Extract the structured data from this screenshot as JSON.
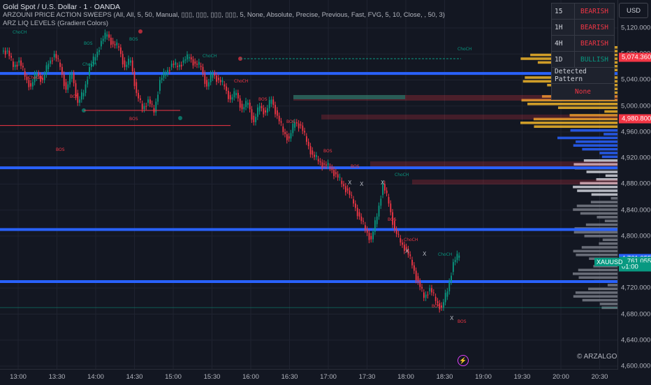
{
  "legend": {
    "title": "Gold Spot / U.S. Dollar · 1 · OANDA",
    "indicator1": "ARZOUNI PRICE ACTION SWEEPS (All, All, 5, 50, Manual, ▯▯▯, ▯▯▯, ▯▯▯, ▯▯▯, 5, None, Absolute, Precise, Previous, Fast, FVG, 5, 10, Close, , 50, 3)",
    "indicator2": "ARZ LIQ LEVELS (Gradient Colors)"
  },
  "currency_button": "USD",
  "mtf_table": {
    "rows": [
      {
        "tf": "15",
        "status": "BEARISH",
        "color": "#f23645"
      },
      {
        "tf": "1H",
        "status": "BEARISH",
        "color": "#f23645"
      },
      {
        "tf": "4H",
        "status": "BEARISH",
        "color": "#f23645"
      },
      {
        "tf": "1D",
        "status": "BULLISH",
        "color": "#089981"
      }
    ],
    "header": "Detected Pattern",
    "pattern": "None"
  },
  "price_axis": {
    "ticks": [
      "5,120.000",
      "5,080.000",
      "5,040.000",
      "5,000.000",
      "4,960.000",
      "4,920.000",
      "4,880.000",
      "4,840.000",
      "4,800.000",
      "4,720.000",
      "4,680.000",
      "4,640.000",
      "4,600.000"
    ],
    "tick_values": [
      5120,
      5080,
      5040,
      5000,
      4960,
      4920,
      4880,
      4840,
      4800,
      4720,
      4680,
      4640,
      4600
    ],
    "tags": [
      {
        "label": "5,074.360",
        "value": 5074.36,
        "bg": "#f23645"
      },
      {
        "label": "4,980.800",
        "value": 4980.8,
        "bg": "#f23645"
      },
      {
        "label": "4,761.055",
        "value": 4765,
        "bg": "#2962ff"
      },
      {
        "label": "4,761.055",
        "value": 4761.055,
        "bg": "#089981"
      },
      {
        "label": "01:00",
        "value": 4753,
        "bg": "#089981"
      }
    ]
  },
  "symbol_label": "XAUUSD",
  "time_axis": {
    "ticks": [
      "13:00",
      "13:30",
      "14:00",
      "14:30",
      "15:00",
      "15:30",
      "16:00",
      "16:30",
      "17:00",
      "17:30",
      "18:00",
      "18:30",
      "19:00",
      "19:30",
      "20:00",
      "20:30"
    ]
  },
  "watermark": "© ARZALGO",
  "chart_data": {
    "type": "candlestick",
    "symbol": "XAUUSD",
    "ylim": [
      4600,
      5130
    ],
    "up_color": "#089981",
    "down_color": "#f23645",
    "close_path": [
      5085,
      5060,
      5070,
      5045,
      5030,
      5050,
      5040,
      5065,
      5080,
      5060,
      5025,
      5050,
      5005,
      5020,
      5060,
      5075,
      5100,
      5110,
      5095,
      5090,
      5060,
      5070,
      5020,
      4995,
      5010,
      4990,
      5040,
      5050,
      5065,
      5060,
      5070,
      5075,
      5065,
      5060,
      5030,
      5050,
      5040,
      5030,
      5010,
      5020,
      4995,
      5005,
      4975,
      5000,
      4990,
      5010,
      4985,
      4960,
      4950,
      4975,
      4970,
      4945,
      4925,
      4915,
      4910,
      4905,
      4895,
      4880,
      4870,
      4850,
      4830,
      4810,
      4795,
      4830,
      4880,
      4850,
      4810,
      4790,
      4780,
      4755,
      4730,
      4705,
      4720,
      4700,
      4690,
      4715,
      4760,
      4770
    ],
    "horizontal_levels": [
      5050,
      4905,
      4810,
      4730
    ],
    "annotations": [
      "BOS",
      "ChoCH",
      "X"
    ]
  }
}
